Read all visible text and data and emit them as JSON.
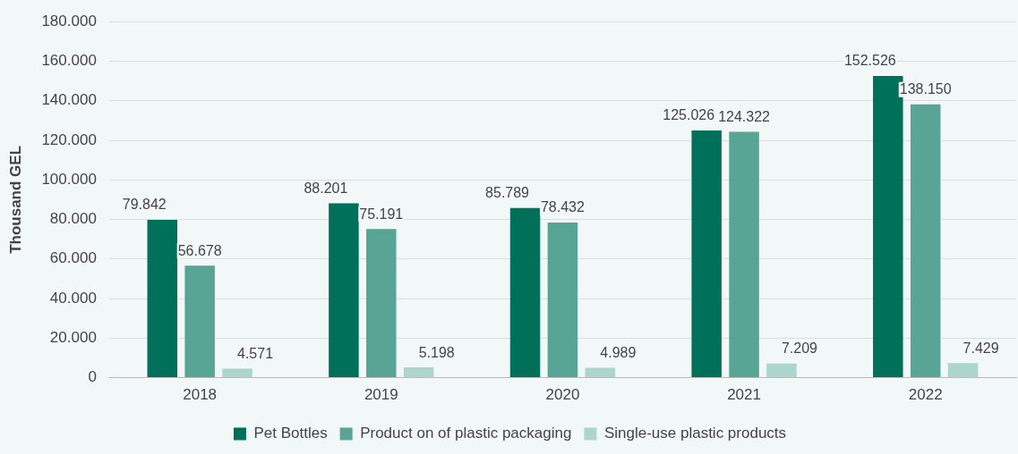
{
  "chart_data": {
    "type": "bar",
    "ylabel": "Thousand GEL",
    "categories": [
      "2018",
      "2019",
      "2020",
      "2021",
      "2022"
    ],
    "series": [
      {
        "name": "Pet Bottles",
        "color": "#00705a",
        "values": [
          79842,
          88201,
          85789,
          125026,
          152526
        ],
        "value_labels": [
          "79.842",
          "88.201",
          "85.789",
          "125.026",
          "152.526"
        ]
      },
      {
        "name": "Product on of plastic packaging",
        "color": "#58a596",
        "values": [
          56678,
          75191,
          78432,
          124322,
          138150
        ],
        "value_labels": [
          "56.678",
          "75.191",
          "78.432",
          "124.322",
          "138.150"
        ]
      },
      {
        "name": "Single-use plastic products",
        "color": "#acd6cd",
        "values": [
          4571,
          5198,
          4989,
          7209,
          7429
        ],
        "value_labels": [
          "4.571",
          "5.198",
          "4.989",
          "7.209",
          "7.429"
        ]
      }
    ],
    "ylim": [
      0,
      180000
    ],
    "yticks": [
      {
        "value": 0,
        "label": "0"
      },
      {
        "value": 20000,
        "label": "20.000"
      },
      {
        "value": 40000,
        "label": "40.000"
      },
      {
        "value": 60000,
        "label": "60.000"
      },
      {
        "value": 80000,
        "label": "80.000"
      },
      {
        "value": 100000,
        "label": "100.000"
      },
      {
        "value": 120000,
        "label": "120.000"
      },
      {
        "value": 140000,
        "label": "140.000"
      },
      {
        "value": 160000,
        "label": "160.000"
      },
      {
        "value": 180000,
        "label": "180.000"
      }
    ],
    "grid": "y",
    "legend": "bottom"
  }
}
